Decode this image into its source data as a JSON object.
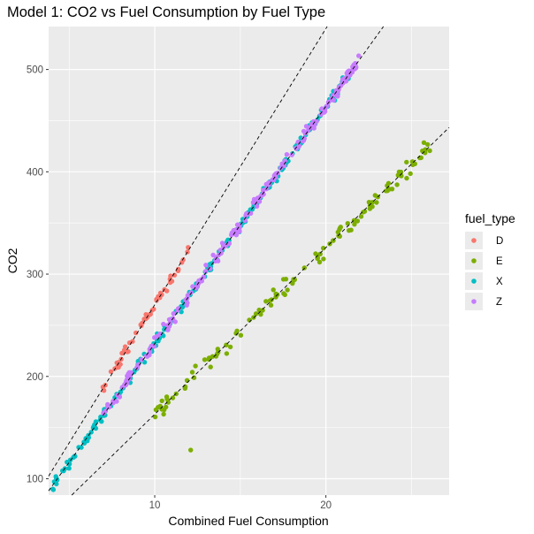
{
  "chart_data": {
    "type": "scatter",
    "title": "Model 1: CO2 vs Fuel Consumption by Fuel Type",
    "xlabel": "Combined Fuel Consumption",
    "ylabel": "CO2",
    "xlim": [
      3.8,
      27.2
    ],
    "ylim": [
      84,
      542
    ],
    "xticks": [
      10,
      20
    ],
    "xticks_minor": [
      5,
      15,
      25
    ],
    "yticks": [
      100,
      200,
      300,
      400,
      500
    ],
    "yticks_minor": [
      150,
      250,
      350,
      450
    ],
    "grid": true,
    "legend": {
      "title": "fuel_type",
      "position": "right"
    },
    "series": [
      {
        "name": "D",
        "color": "#F8766D",
        "slope": 27.0,
        "intercept": 0,
        "x_range": [
          6.5,
          12.0
        ],
        "count": 55,
        "noise": 2.5
      },
      {
        "name": "E",
        "color": "#7CAE00",
        "slope": 16.3,
        "intercept": 0,
        "x_range": [
          10.0,
          26.1
        ],
        "count": 120,
        "noise": 4.0,
        "extra_points": [
          [
            12.1,
            128
          ]
        ]
      },
      {
        "name": "X",
        "color": "#00BFC4",
        "slope": 23.2,
        "intercept": 0,
        "x_range": [
          4.0,
          21.5
        ],
        "count": 230,
        "noise": 2.5
      },
      {
        "name": "Z",
        "color": "#C77CFF",
        "slope": 23.2,
        "intercept": 0,
        "x_range": [
          7.0,
          22.0
        ],
        "count": 200,
        "noise": 3.0
      }
    ],
    "fit_lines": [
      {
        "series": "D",
        "slope": 27.0,
        "intercept": 0,
        "style": "dashed"
      },
      {
        "series": "X/Z",
        "slope": 23.2,
        "intercept": 0,
        "style": "dashed"
      },
      {
        "series": "E",
        "slope": 16.3,
        "intercept": 0,
        "style": "dashed"
      }
    ]
  }
}
